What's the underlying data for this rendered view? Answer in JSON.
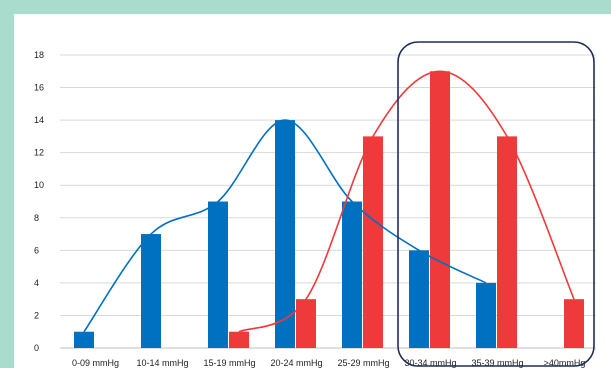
{
  "chart_data": {
    "type": "bar",
    "title": "",
    "xlabel": "",
    "ylabel": "",
    "categories": [
      "0-09 mmHg",
      "10-14 mmHg",
      "15-19 mmHg",
      "20-24 mmHg",
      "25-29 mmHg",
      "30-34 mmHg",
      "35-39 mmHg",
      ">40mmHg"
    ],
    "ylim": [
      0,
      18
    ],
    "yticks": [
      0,
      2,
      4,
      6,
      8,
      10,
      12,
      14,
      16,
      18
    ],
    "grid": true,
    "legend": "none",
    "series": [
      {
        "values": [
          1,
          7,
          9,
          14,
          9,
          6,
          4,
          null
        ],
        "color": "#0070c0",
        "curve": true
      },
      {
        "values": [
          null,
          null,
          1,
          3,
          13,
          17,
          13,
          3
        ],
        "color": "#ee3a3a",
        "curve": true
      }
    ],
    "annotations": [
      {
        "shape": "rounded-rectangle",
        "encloses": [
          "30-34 mmHg",
          "35-39 mmHg",
          ">40mmHg"
        ],
        "color": "#1f2d5a"
      }
    ]
  },
  "colors": {
    "frame": "#a9dccd",
    "background": "#ffffff",
    "gridline": "#d9d9d9"
  }
}
